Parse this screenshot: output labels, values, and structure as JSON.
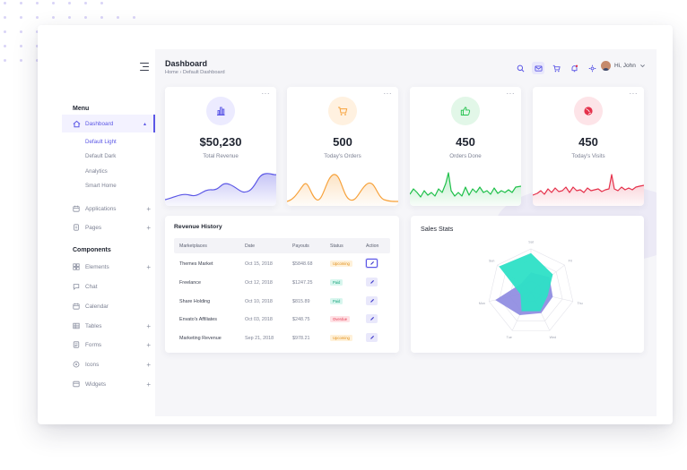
{
  "sidebar": {
    "menu_title": "Menu",
    "components_title": "Components",
    "dashboard": {
      "label": "Dashboard",
      "icon": "home-icon"
    },
    "dashboard_sub": [
      "Default Light",
      "Default Dark",
      "Analytics",
      "Smart Home"
    ],
    "apps": [
      {
        "label": "Applications",
        "icon": "calendar-icon",
        "expandable": true
      },
      {
        "label": "Pages",
        "icon": "pages-icon",
        "expandable": true
      }
    ],
    "components": [
      {
        "label": "Elements",
        "icon": "grid-icon",
        "expandable": true
      },
      {
        "label": "Chat",
        "icon": "chat-icon",
        "expandable": false
      },
      {
        "label": "Calendar",
        "icon": "calendar-icon",
        "expandable": false
      },
      {
        "label": "Tables",
        "icon": "table-icon",
        "expandable": true
      },
      {
        "label": "Forms",
        "icon": "form-icon",
        "expandable": true
      },
      {
        "label": "Icons",
        "icon": "icons-icon",
        "expandable": true
      },
      {
        "label": "Widgets",
        "icon": "widget-icon",
        "expandable": true
      }
    ]
  },
  "header": {
    "title": "Dashboard",
    "breadcrumb": [
      "Home",
      "Default Dashboard"
    ],
    "icons": [
      "search-icon",
      "mail-icon",
      "cart-icon",
      "bell-icon",
      "settings-icon"
    ],
    "user_greeting": "Hi, John"
  },
  "stats": [
    {
      "value": "$50,230",
      "label": "Total Revenue",
      "icon": "bar-chart-icon",
      "color": "#5b57e6",
      "tint": "#ecebff"
    },
    {
      "value": "500",
      "label": "Today's Orders",
      "icon": "cart-icon",
      "color": "#f7a23b",
      "tint": "#fff1e0"
    },
    {
      "value": "450",
      "label": "Orders Done",
      "icon": "thumbs-up-icon",
      "color": "#1fc04a",
      "tint": "#e2f7e8"
    },
    {
      "value": "450",
      "label": "Today's Visits",
      "icon": "globe-icon",
      "color": "#e5314b",
      "tint": "#fde4e8"
    }
  ],
  "revenue_history": {
    "title": "Revenue History",
    "columns": [
      "Marketplaces",
      "Date",
      "Payouts",
      "Status",
      "Action"
    ],
    "rows": [
      {
        "market": "Themes Market",
        "date": "Oct 15, 2018",
        "payout": "$5848.68",
        "status": "Upcoming",
        "status_type": "up"
      },
      {
        "market": "Freelance",
        "date": "Oct 12, 2018",
        "payout": "$1247.25",
        "status": "Paid",
        "status_type": "paid"
      },
      {
        "market": "Share Holding",
        "date": "Oct 10, 2018",
        "payout": "$815.89",
        "status": "Paid",
        "status_type": "paid"
      },
      {
        "market": "Envato's Affiliates",
        "date": "Oct 03, 2018",
        "payout": "$248.75",
        "status": "Overdue",
        "status_type": "over"
      },
      {
        "market": "Marketing Revenue",
        "date": "Sep 21, 2018",
        "payout": "$978.21",
        "status": "Upcoming",
        "status_type": "up"
      }
    ]
  },
  "sales_stats": {
    "title": "Sales Stats",
    "axes": [
      "Sat",
      "Fri",
      "Thu",
      "Wed",
      "Tue",
      "Mon",
      "Sun"
    ],
    "series": [
      {
        "color": "#8c88e0",
        "values": [
          0.45,
          0.55,
          0.52,
          0.55,
          0.6,
          0.85,
          0.3
        ]
      },
      {
        "color": "#2de0c6",
        "values": [
          0.9,
          0.65,
          0.4,
          0.5,
          0.5,
          0.25,
          0.95
        ]
      }
    ]
  },
  "colors": {
    "accent": "#5b57e6",
    "background": "#f6f6f9"
  }
}
